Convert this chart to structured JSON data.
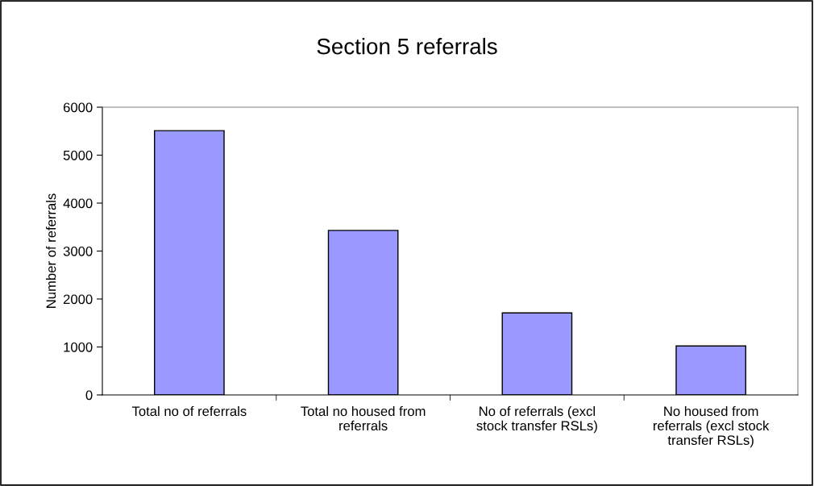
{
  "chart_data": {
    "type": "bar",
    "title": "Section 5 referrals",
    "ylabel": "Number of referrals",
    "categories": [
      "Total no of referrals",
      "Total no housed from referrals",
      "No of referrals (excl stock transfer RSLs)",
      "No housed from referrals (excl stock transfer RSLs)"
    ],
    "values": [
      5510,
      3430,
      1710,
      1020
    ],
    "color": "#9999ff",
    "ylim": [
      0,
      6000
    ],
    "yticks": [
      0,
      1000,
      2000,
      3000,
      4000,
      5000,
      6000
    ],
    "grid": false,
    "legend": false
  }
}
